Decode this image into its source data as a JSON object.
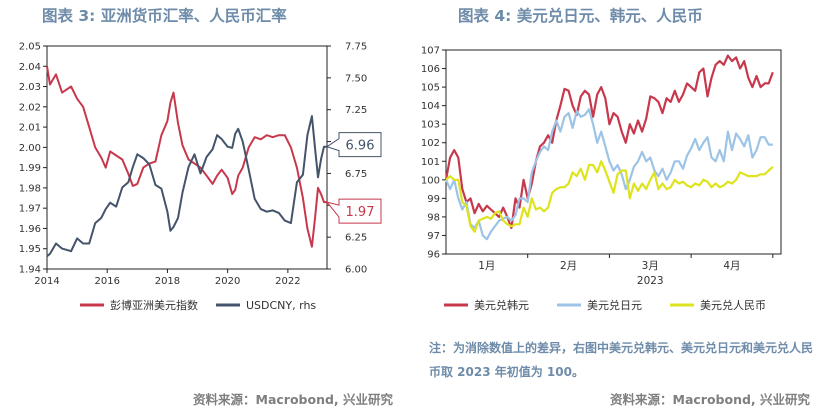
{
  "left": {
    "title": "图表 3:  亚洲货币汇率、人民币汇率",
    "source": "资料来源：Macrobond, 兴业研究",
    "chart_data": {
      "type": "line",
      "x_ticks": [
        "2014",
        "2016",
        "2018",
        "2020",
        "2022"
      ],
      "x_tick_values": [
        2014,
        2016,
        2018,
        2020,
        2022
      ],
      "xlim": [
        2014,
        2023.3
      ],
      "y_left_ticks": [
        "2.05",
        "2.04",
        "2.03",
        "2.02",
        "2.01",
        "2.00",
        "1.99",
        "1.98",
        "1.97",
        "1.96",
        "1.95",
        "1.94"
      ],
      "ylim_left": [
        1.94,
        2.05
      ],
      "y_right_ticks": [
        "6.00",
        "6.25",
        "6.50",
        "6.75",
        "7.00",
        "7.25",
        "7.50",
        "7.75"
      ],
      "ylim_right": [
        7.75,
        6.0
      ],
      "series": [
        {
          "name": "彭博亚洲美元指数",
          "axis": "left",
          "color": "#c8384c",
          "x": [
            2014.0,
            2014.1,
            2014.3,
            2014.5,
            2014.8,
            2015.0,
            2015.2,
            2015.4,
            2015.6,
            2015.8,
            2015.95,
            2016.1,
            2016.3,
            2016.5,
            2016.7,
            2016.85,
            2017.0,
            2017.2,
            2017.4,
            2017.6,
            2017.8,
            2018.0,
            2018.1,
            2018.2,
            2018.35,
            2018.5,
            2018.7,
            2018.9,
            2019.1,
            2019.3,
            2019.5,
            2019.65,
            2019.8,
            2020.0,
            2020.15,
            2020.25,
            2020.35,
            2020.5,
            2020.7,
            2020.9,
            2021.1,
            2021.3,
            2021.5,
            2021.7,
            2021.9,
            2022.1,
            2022.3,
            2022.5,
            2022.65,
            2022.8,
            2022.9,
            2023.0,
            2023.1,
            2023.2,
            2023.3
          ],
          "y": [
            2.04,
            2.031,
            2.036,
            2.027,
            2.03,
            2.024,
            2.02,
            2.01,
            2.0,
            1.995,
            1.99,
            1.998,
            1.996,
            1.994,
            1.987,
            1.981,
            1.982,
            1.99,
            1.992,
            1.993,
            2.006,
            2.013,
            2.022,
            2.027,
            2.012,
            2.001,
            1.994,
            1.992,
            1.99,
            1.986,
            1.982,
            1.986,
            1.989,
            1.985,
            1.977,
            1.979,
            1.986,
            1.99,
            2.0,
            2.005,
            2.004,
            2.006,
            2.005,
            2.006,
            2.006,
            2.0,
            1.99,
            1.975,
            1.96,
            1.951,
            1.965,
            1.98,
            1.977,
            1.973,
            1.973
          ]
        },
        {
          "name": "USDCNY, rhs",
          "axis": "right",
          "color": "#44546a",
          "x": [
            2014.0,
            2014.1,
            2014.3,
            2014.5,
            2014.8,
            2015.0,
            2015.2,
            2015.4,
            2015.6,
            2015.8,
            2015.95,
            2016.1,
            2016.3,
            2016.5,
            2016.7,
            2016.85,
            2017.0,
            2017.2,
            2017.4,
            2017.6,
            2017.8,
            2018.0,
            2018.1,
            2018.2,
            2018.35,
            2018.5,
            2018.7,
            2018.9,
            2019.1,
            2019.3,
            2019.5,
            2019.65,
            2019.8,
            2020.0,
            2020.15,
            2020.25,
            2020.35,
            2020.5,
            2020.7,
            2020.9,
            2021.1,
            2021.3,
            2021.5,
            2021.7,
            2021.9,
            2022.1,
            2022.3,
            2022.5,
            2022.65,
            2022.8,
            2022.9,
            2023.0,
            2023.1,
            2023.2,
            2023.3
          ],
          "y": [
            6.1,
            6.12,
            6.2,
            6.16,
            6.14,
            6.24,
            6.2,
            6.2,
            6.36,
            6.4,
            6.47,
            6.52,
            6.49,
            6.64,
            6.68,
            6.8,
            6.9,
            6.87,
            6.82,
            6.66,
            6.63,
            6.45,
            6.3,
            6.33,
            6.4,
            6.6,
            6.8,
            6.9,
            6.75,
            6.88,
            6.94,
            7.05,
            7.02,
            6.96,
            6.95,
            7.06,
            7.1,
            7.0,
            6.78,
            6.55,
            6.47,
            6.45,
            6.46,
            6.44,
            6.38,
            6.36,
            6.68,
            6.74,
            7.05,
            7.2,
            6.95,
            6.72,
            6.86,
            6.96,
            6.96
          ]
        }
      ],
      "end_labels": [
        {
          "text": "6.96",
          "axis": "right",
          "value": 6.96,
          "color": "#44546a"
        },
        {
          "text": "1.97",
          "axis": "left",
          "value": 1.973,
          "color": "#c8384c"
        }
      ]
    }
  },
  "right": {
    "title": "图表 4:  美元兑日元、韩元、人民币",
    "note": "注：为消除数值上的差异，右图中美元兑韩元、美元兑日元和美元兑人民币取 2023 年初值为 100。",
    "source": "资料来源：Macrobond, 兴业研究",
    "chart_data": {
      "type": "line",
      "x_ticks": [
        "1月",
        "2月",
        "3月",
        "4月"
      ],
      "x_tick_values": [
        1.5,
        2.5,
        3.5,
        4.5
      ],
      "x_year_label": "2023",
      "xlim": [
        1,
        5.1
      ],
      "y_ticks": [
        "107",
        "106",
        "105",
        "104",
        "103",
        "102",
        "101",
        "100",
        "99",
        "98",
        "97",
        "96"
      ],
      "ylim": [
        96,
        107
      ],
      "series": [
        {
          "name": "美元兑韩元",
          "color": "#c8384c",
          "x": [
            1.0,
            1.05,
            1.1,
            1.15,
            1.2,
            1.25,
            1.3,
            1.35,
            1.4,
            1.45,
            1.5,
            1.55,
            1.6,
            1.65,
            1.7,
            1.75,
            1.8,
            1.85,
            1.9,
            1.95,
            2.0,
            2.05,
            2.1,
            2.15,
            2.2,
            2.25,
            2.3,
            2.35,
            2.4,
            2.45,
            2.5,
            2.55,
            2.6,
            2.65,
            2.7,
            2.75,
            2.8,
            2.85,
            2.9,
            2.95,
            3.0,
            3.05,
            3.1,
            3.15,
            3.2,
            3.25,
            3.3,
            3.35,
            3.4,
            3.45,
            3.5,
            3.55,
            3.6,
            3.65,
            3.7,
            3.75,
            3.8,
            3.85,
            3.9,
            3.95,
            4.0,
            4.05,
            4.1,
            4.15,
            4.2,
            4.25,
            4.3,
            4.35,
            4.4,
            4.45,
            4.5,
            4.55,
            4.6,
            4.65,
            4.7,
            4.75,
            4.8,
            4.85,
            4.9,
            4.95,
            5.0
          ],
          "y": [
            100.0,
            101.2,
            101.6,
            101.2,
            99.5,
            98.8,
            99.0,
            98.2,
            98.7,
            98.3,
            98.6,
            98.4,
            98.2,
            98.0,
            98.5,
            98.0,
            97.4,
            99.0,
            98.5,
            100.0,
            99.0,
            99.8,
            101.0,
            101.8,
            102.0,
            102.4,
            102.0,
            103.2,
            104.0,
            104.9,
            104.8,
            104.0,
            103.5,
            104.5,
            104.8,
            104.6,
            103.4,
            104.6,
            105.0,
            104.4,
            103.0,
            103.6,
            103.4,
            102.6,
            102.0,
            103.0,
            102.5,
            103.2,
            102.6,
            103.3,
            104.5,
            104.4,
            104.2,
            103.6,
            104.4,
            104.2,
            104.8,
            104.2,
            104.6,
            105.2,
            105.0,
            104.8,
            105.8,
            106.0,
            104.5,
            105.5,
            106.2,
            106.4,
            106.2,
            106.7,
            106.4,
            106.6,
            106.0,
            106.4,
            105.5,
            105.0,
            105.6,
            105.0,
            105.2,
            105.2,
            105.8
          ]
        },
        {
          "name": "美元兑日元",
          "color": "#9dc3e6",
          "x": [
            1.0,
            1.05,
            1.1,
            1.15,
            1.2,
            1.25,
            1.3,
            1.35,
            1.4,
            1.45,
            1.5,
            1.55,
            1.6,
            1.65,
            1.7,
            1.75,
            1.8,
            1.85,
            1.9,
            1.95,
            2.0,
            2.05,
            2.1,
            2.15,
            2.2,
            2.25,
            2.3,
            2.35,
            2.4,
            2.45,
            2.5,
            2.55,
            2.6,
            2.65,
            2.7,
            2.75,
            2.8,
            2.85,
            2.9,
            2.95,
            3.0,
            3.05,
            3.1,
            3.15,
            3.2,
            3.25,
            3.3,
            3.35,
            3.4,
            3.45,
            3.5,
            3.55,
            3.6,
            3.65,
            3.7,
            3.75,
            3.8,
            3.85,
            3.9,
            3.95,
            4.0,
            4.05,
            4.1,
            4.15,
            4.2,
            4.25,
            4.3,
            4.35,
            4.4,
            4.45,
            4.5,
            4.55,
            4.6,
            4.65,
            4.7,
            4.75,
            4.8,
            4.85,
            4.9,
            4.95,
            5.0
          ],
          "y": [
            100.0,
            99.5,
            100.0,
            99.0,
            98.4,
            98.8,
            97.6,
            97.4,
            97.8,
            97.0,
            96.8,
            97.2,
            97.5,
            97.8,
            97.9,
            98.0,
            97.8,
            98.1,
            99.0,
            99.0,
            98.8,
            100.4,
            101.0,
            101.5,
            101.8,
            101.6,
            102.6,
            103.2,
            102.6,
            103.4,
            103.6,
            102.8,
            103.7,
            103.4,
            103.5,
            103.8,
            103.0,
            102.0,
            102.6,
            101.8,
            101.0,
            100.5,
            100.8,
            100.3,
            99.5,
            100.0,
            100.7,
            101.0,
            101.5,
            101.0,
            101.2,
            100.5,
            100.2,
            100.6,
            100.0,
            100.4,
            101.0,
            101.0,
            100.6,
            101.3,
            101.7,
            102.2,
            101.6,
            102.0,
            102.3,
            101.2,
            101.0,
            101.6,
            101.0,
            102.6,
            101.6,
            102.5,
            102.2,
            101.8,
            102.4,
            101.2,
            101.6,
            102.3,
            102.3,
            101.9,
            101.9
          ]
        },
        {
          "name": "美元兑人民币",
          "color": "#dde31d",
          "x": [
            1.0,
            1.05,
            1.1,
            1.15,
            1.2,
            1.25,
            1.3,
            1.35,
            1.4,
            1.45,
            1.5,
            1.55,
            1.6,
            1.65,
            1.7,
            1.75,
            1.8,
            1.85,
            1.9,
            1.95,
            2.0,
            2.05,
            2.1,
            2.15,
            2.2,
            2.25,
            2.3,
            2.35,
            2.4,
            2.45,
            2.5,
            2.55,
            2.6,
            2.65,
            2.7,
            2.75,
            2.8,
            2.85,
            2.9,
            2.95,
            3.0,
            3.05,
            3.1,
            3.15,
            3.2,
            3.25,
            3.3,
            3.35,
            3.4,
            3.45,
            3.5,
            3.55,
            3.6,
            3.65,
            3.7,
            3.75,
            3.8,
            3.85,
            3.9,
            3.95,
            4.0,
            4.05,
            4.1,
            4.15,
            4.2,
            4.25,
            4.3,
            4.35,
            4.4,
            4.45,
            4.5,
            4.55,
            4.6,
            4.65,
            4.7,
            4.75,
            4.8,
            4.85,
            4.9,
            4.95,
            5.0
          ],
          "y": [
            100.0,
            100.2,
            100.0,
            100.0,
            98.8,
            98.6,
            97.5,
            97.2,
            97.8,
            97.9,
            98.0,
            97.9,
            98.2,
            98.3,
            97.8,
            97.6,
            97.5,
            97.6,
            97.6,
            98.5,
            98.0,
            99.0,
            98.4,
            98.5,
            98.3,
            98.5,
            99.3,
            99.5,
            99.6,
            99.6,
            99.8,
            100.4,
            100.2,
            100.6,
            100.0,
            100.8,
            100.8,
            100.4,
            101.0,
            100.5,
            99.9,
            99.3,
            100.3,
            100.5,
            100.5,
            99.0,
            99.8,
            99.4,
            99.8,
            99.5,
            100.0,
            100.4,
            99.5,
            99.8,
            99.5,
            99.6,
            100.0,
            99.8,
            99.9,
            99.7,
            99.6,
            99.8,
            99.7,
            100.0,
            99.9,
            99.6,
            99.8,
            99.6,
            99.7,
            99.9,
            99.8,
            100.0,
            100.4,
            100.3,
            100.2,
            100.2,
            100.2,
            100.3,
            100.3,
            100.5,
            100.7
          ]
        }
      ]
    }
  }
}
